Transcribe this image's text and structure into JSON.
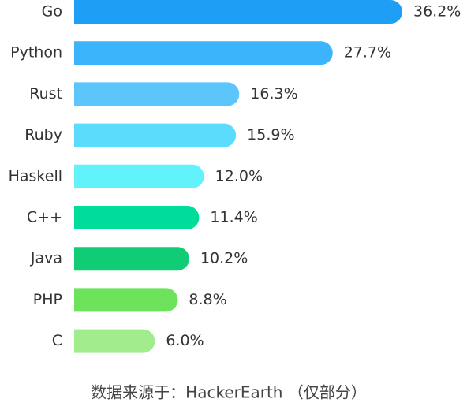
{
  "chart_data": {
    "type": "bar",
    "orientation": "horizontal",
    "categories": [
      "Go",
      "Python",
      "Rust",
      "Ruby",
      "Haskell",
      "C++",
      "Java",
      "PHP",
      "C"
    ],
    "values": [
      36.2,
      27.7,
      16.3,
      15.9,
      12.0,
      11.4,
      10.2,
      8.8,
      6.0
    ],
    "value_labels": [
      "36.2%",
      "27.7%",
      "16.3%",
      "15.9%",
      "12.0%",
      "11.4%",
      "10.2%",
      "8.8%",
      "6.0%"
    ],
    "colors": [
      "#1e9ef5",
      "#3bb4fb",
      "#5cc5fc",
      "#5cdcfc",
      "#62f2fc",
      "#00dc9a",
      "#10cc75",
      "#6ce35a",
      "#a2ec8d"
    ],
    "source": "数据来源于：HackerEarth （仅部分）"
  }
}
